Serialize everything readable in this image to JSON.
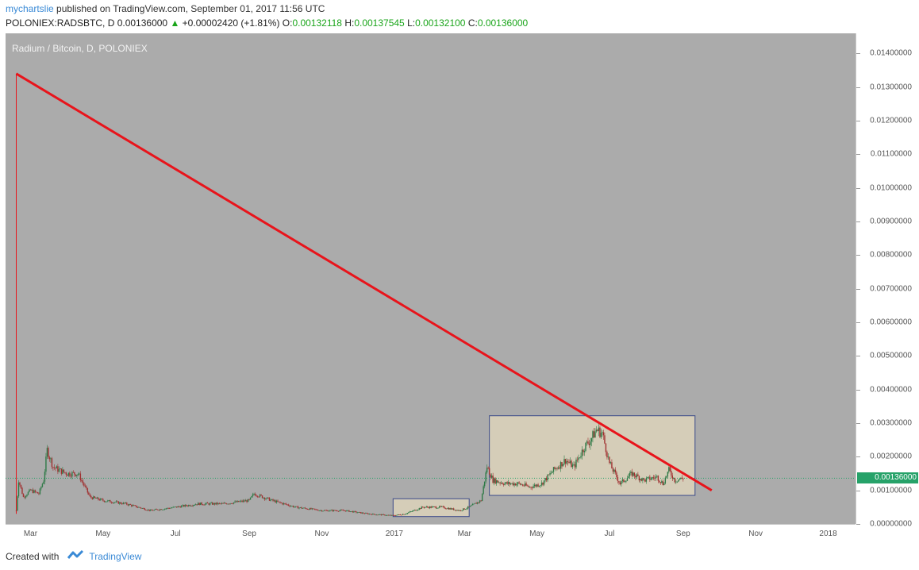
{
  "header": {
    "author": "mychartslie",
    "published_text": "published on TradingView.com, September 01, 2017 11:56 UTC",
    "symbol_line": "POLONIEX:RADSBTC, D  0.00136000",
    "change_arrow": "▲",
    "change_text": "+0.00002420 (+1.81%)",
    "o_label": "O:",
    "o_value": "0.00132118",
    "h_label": "H:",
    "h_value": "0.00137545",
    "l_label": "L:",
    "l_value": "0.00132100",
    "c_label": "C:",
    "c_value": "0.00136000"
  },
  "footer": {
    "created_with": "Created with",
    "brand": "TradingView",
    "logo_icon": "tradingview-logo-icon"
  },
  "colors": {
    "plot_bg": "#ababab",
    "trendline": "#e8141b",
    "box_fill": "#e0d6bc",
    "box_stroke": "#3b4a8a",
    "price_line": "#26a269",
    "up_candle": "#2f7a47",
    "down_candle": "#a03030"
  },
  "chart_data": {
    "type": "line",
    "title": "Radium / Bitcoin, D, POLONIEX",
    "current_price_label": "0.00136000",
    "current_price": 0.00136,
    "ylim": [
      0,
      0.0146
    ],
    "xlim": [
      "2016-02-09",
      "2018-01-24"
    ],
    "y_ticks": [
      {
        "value": 0.014,
        "label": "0.01400000"
      },
      {
        "value": 0.013,
        "label": "0.01300000"
      },
      {
        "value": 0.012,
        "label": "0.01200000"
      },
      {
        "value": 0.011,
        "label": "0.01100000"
      },
      {
        "value": 0.01,
        "label": "0.01000000"
      },
      {
        "value": 0.009,
        "label": "0.00900000"
      },
      {
        "value": 0.008,
        "label": "0.00800000"
      },
      {
        "value": 0.007,
        "label": "0.00700000"
      },
      {
        "value": 0.006,
        "label": "0.00600000"
      },
      {
        "value": 0.005,
        "label": "0.00500000"
      },
      {
        "value": 0.004,
        "label": "0.00400000"
      },
      {
        "value": 0.003,
        "label": "0.00300000"
      },
      {
        "value": 0.002,
        "label": "0.00200000"
      },
      {
        "value": 0.001,
        "label": "0.00100000"
      },
      {
        "value": 0.0,
        "label": "0.00000000"
      }
    ],
    "x_ticks": [
      {
        "date": "2016-03-01",
        "label": "Mar"
      },
      {
        "date": "2016-05-01",
        "label": "May"
      },
      {
        "date": "2016-07-01",
        "label": "Jul"
      },
      {
        "date": "2016-09-01",
        "label": "Sep"
      },
      {
        "date": "2016-11-01",
        "label": "Nov"
      },
      {
        "date": "2017-01-01",
        "label": "2017"
      },
      {
        "date": "2017-03-01",
        "label": "Mar"
      },
      {
        "date": "2017-05-01",
        "label": "May"
      },
      {
        "date": "2017-07-01",
        "label": "Jul"
      },
      {
        "date": "2017-09-01",
        "label": "Sep"
      },
      {
        "date": "2017-11-01",
        "label": "Nov"
      },
      {
        "date": "2018-01-01",
        "label": "2018"
      }
    ],
    "series": [
      {
        "x": [
          "2016-02-18",
          "2016-02-20",
          "2016-02-24",
          "2016-03-01",
          "2016-03-08",
          "2016-03-12",
          "2016-03-15",
          "2016-03-20",
          "2016-03-25",
          "2016-04-01",
          "2016-04-10",
          "2016-04-20",
          "2016-05-01",
          "2016-05-20",
          "2016-06-10",
          "2016-07-01",
          "2016-07-20",
          "2016-08-10",
          "2016-09-01",
          "2016-09-05",
          "2016-09-20",
          "2016-10-10",
          "2016-11-01",
          "2016-11-20",
          "2016-12-10",
          "2016-12-31",
          "2017-01-10",
          "2017-01-25",
          "2017-02-10",
          "2017-02-25",
          "2017-03-05",
          "2017-03-15",
          "2017-03-20",
          "2017-03-25",
          "2017-04-05",
          "2017-04-15",
          "2017-04-25",
          "2017-05-05",
          "2017-05-15",
          "2017-05-25",
          "2017-06-01",
          "2017-06-10",
          "2017-06-15",
          "2017-06-20",
          "2017-06-25",
          "2017-07-01",
          "2017-07-10",
          "2017-07-20",
          "2017-07-30",
          "2017-08-10",
          "2017-08-15",
          "2017-08-20",
          "2017-08-25",
          "2017-09-01"
        ],
        "y": [
          0.0004,
          0.0013,
          0.0008,
          0.001,
          0.0009,
          0.0013,
          0.0022,
          0.0017,
          0.0016,
          0.0015,
          0.0015,
          0.0008,
          0.0007,
          0.0006,
          0.0004,
          0.0005,
          0.0006,
          0.0006,
          0.0007,
          0.0009,
          0.0007,
          0.0005,
          0.0004,
          0.0004,
          0.0003,
          0.00025,
          0.0003,
          0.0005,
          0.0005,
          0.0004,
          0.0005,
          0.0007,
          0.0017,
          0.0013,
          0.0012,
          0.0012,
          0.0011,
          0.0012,
          0.0016,
          0.0019,
          0.0017,
          0.0023,
          0.0025,
          0.0028,
          0.0027,
          0.0018,
          0.0012,
          0.0015,
          0.0013,
          0.0014,
          0.0012,
          0.0016,
          0.0013,
          0.00136
        ]
      }
    ],
    "spike": {
      "date": "2016-02-18",
      "high": 0.0134,
      "low": 0.0003
    },
    "trendline": {
      "start": {
        "date": "2016-02-18",
        "value": 0.0134
      },
      "end": {
        "date": "2017-09-25",
        "value": 0.001
      }
    },
    "zones": [
      {
        "start": "2016-12-31",
        "end": "2017-03-05",
        "top": 0.00075,
        "bottom": 0.00022
      },
      {
        "start": "2017-03-22",
        "end": "2017-09-11",
        "top": 0.00322,
        "bottom": 0.00085
      }
    ]
  }
}
